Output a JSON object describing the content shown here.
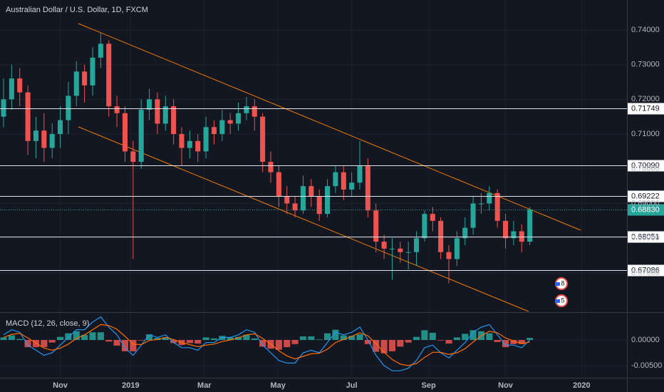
{
  "chart_data": {
    "type": "candlestick",
    "title": "Australian Dollar / U.S. Dollar, 1D, FXCM",
    "up_color": "#26a69a",
    "down_color": "#ef5350",
    "open": [
      0.715,
      0.72,
      0.726,
      0.722,
      0.708,
      0.711,
      0.706,
      0.71,
      0.714,
      0.721,
      0.728,
      0.724,
      0.732,
      0.736,
      0.718,
      0.716,
      0.705,
      0.702,
      0.717,
      0.72,
      0.713,
      0.718,
      0.71,
      0.706,
      0.708,
      0.705,
      0.712,
      0.71,
      0.714,
      0.713,
      0.716,
      0.718,
      0.715,
      0.702,
      0.699,
      0.692,
      0.69,
      0.688,
      0.695,
      0.692,
      0.687,
      0.695,
      0.699,
      0.694,
      0.696,
      0.701,
      0.688,
      0.679,
      0.677,
      0.677,
      0.676,
      0.676,
      0.68,
      0.687,
      0.685,
      0.676,
      0.674,
      0.68,
      0.683,
      0.69,
      0.69,
      0.693,
      0.685,
      0.68,
      0.682,
      0.679
    ],
    "high": [
      0.726,
      0.73,
      0.729,
      0.724,
      0.715,
      0.716,
      0.713,
      0.718,
      0.725,
      0.731,
      0.73,
      0.735,
      0.7392,
      0.737,
      0.721,
      0.718,
      0.708,
      0.72,
      0.723,
      0.722,
      0.721,
      0.72,
      0.712,
      0.711,
      0.71,
      0.715,
      0.714,
      0.717,
      0.716,
      0.719,
      0.7207,
      0.72,
      0.716,
      0.705,
      0.701,
      0.695,
      0.692,
      0.698,
      0.697,
      0.694,
      0.697,
      0.701,
      0.701,
      0.699,
      0.708,
      0.703,
      0.69,
      0.681,
      0.68,
      0.679,
      0.679,
      0.682,
      0.688,
      0.689,
      0.686,
      0.678,
      0.682,
      0.686,
      0.692,
      0.693,
      0.695,
      0.694,
      0.687,
      0.685,
      0.684,
      0.689
    ],
    "low": [
      0.712,
      0.717,
      0.718,
      0.704,
      0.703,
      0.702,
      0.703,
      0.706,
      0.71,
      0.718,
      0.719,
      0.721,
      0.729,
      0.715,
      0.712,
      0.702,
      0.674,
      0.7,
      0.714,
      0.71,
      0.711,
      0.707,
      0.701,
      0.703,
      0.702,
      0.703,
      0.707,
      0.708,
      0.71,
      0.711,
      0.714,
      0.711,
      0.699,
      0.696,
      0.689,
      0.687,
      0.686,
      0.687,
      0.689,
      0.685,
      0.686,
      0.693,
      0.691,
      0.692,
      0.694,
      0.686,
      0.676,
      0.674,
      0.668,
      0.673,
      0.671,
      0.672,
      0.679,
      0.682,
      0.674,
      0.667,
      0.672,
      0.678,
      0.681,
      0.687,
      0.688,
      0.683,
      0.677,
      0.678,
      0.676,
      0.678
    ],
    "close": [
      0.72,
      0.726,
      0.722,
      0.708,
      0.711,
      0.706,
      0.71,
      0.714,
      0.721,
      0.728,
      0.724,
      0.732,
      0.736,
      0.718,
      0.716,
      0.705,
      0.702,
      0.717,
      0.72,
      0.713,
      0.718,
      0.71,
      0.706,
      0.708,
      0.705,
      0.712,
      0.71,
      0.714,
      0.713,
      0.716,
      0.718,
      0.715,
      0.702,
      0.699,
      0.692,
      0.69,
      0.688,
      0.695,
      0.692,
      0.687,
      0.695,
      0.699,
      0.694,
      0.696,
      0.701,
      0.688,
      0.679,
      0.677,
      0.677,
      0.676,
      0.676,
      0.68,
      0.687,
      0.685,
      0.676,
      0.674,
      0.68,
      0.683,
      0.69,
      0.69,
      0.693,
      0.685,
      0.68,
      0.682,
      0.679,
      0.6883
    ],
    "xlim": [
      -0.44,
      77
    ],
    "xticks": [
      {
        "value": 7,
        "label": "Nov"
      },
      {
        "value": 15.7,
        "label": "2019"
      },
      {
        "value": 24.8,
        "label": "Mar"
      },
      {
        "value": 33.9,
        "label": "May"
      },
      {
        "value": 43,
        "label": "Jul"
      },
      {
        "value": 52.5,
        "label": "Sep"
      },
      {
        "value": 62,
        "label": "Nov"
      },
      {
        "value": 71.4,
        "label": "2020"
      }
    ],
    "ylim": [
      0.6587,
      0.7486
    ],
    "yticks": [
      {
        "value": 0.67,
        "label": "0.67000"
      },
      {
        "value": 0.68,
        "label": "0.68000"
      },
      {
        "value": 0.69,
        "label": "0.69000"
      },
      {
        "value": 0.7,
        "label": "0.70000"
      },
      {
        "value": 0.71,
        "label": "0.71000"
      },
      {
        "value": 0.72,
        "label": "0.72000"
      },
      {
        "value": 0.73,
        "label": "0.73000"
      },
      {
        "value": 0.74,
        "label": "0.74000"
      }
    ],
    "grid": true,
    "levels": [
      0.71749,
      {
        "value": 0.7009,
        "label": "0.70090"
      },
      0.69222,
      0.68051,
      0.67086
    ],
    "last_price": {
      "value": 0.6883,
      "label": "0.68830"
    },
    "events": [
      "8",
      "5"
    ],
    "macd": {
      "title": "MACD (12, 26, close, 9)",
      "macd_color": "#2196f3",
      "signal_color": "#ff6d00",
      "ylim": [
        -0.00736,
        0.00514
      ],
      "yticks": [
        {
          "value": 0,
          "label": "0.00000"
        },
        {
          "value": -0.005,
          "label": "-0.00500"
        }
      ],
      "macd": [
        0.001,
        0.002,
        0.0015,
        -0.001,
        -0.002,
        -0.003,
        -0.0025,
        -0.001,
        0.0005,
        0.002,
        0.002,
        0.0035,
        0.0045,
        0.0025,
        0.001,
        -0.0015,
        -0.003,
        -0.001,
        0.001,
        0.0005,
        0.001,
        -0.0005,
        -0.0015,
        -0.0015,
        -0.002,
        -0.0005,
        -0.0005,
        0.0005,
        0.0005,
        0.001,
        0.002,
        0.0015,
        -0.001,
        -0.0025,
        -0.004,
        -0.0045,
        -0.0045,
        -0.0025,
        -0.002,
        -0.0025,
        -0.0005,
        0.0015,
        0.001,
        0.0015,
        0.0025,
        0.0,
        -0.003,
        -0.005,
        -0.006,
        -0.006,
        -0.0055,
        -0.004,
        -0.0015,
        -0.001,
        -0.0025,
        -0.0035,
        -0.002,
        -0.0005,
        0.0015,
        0.0025,
        0.003,
        0.001,
        -0.001,
        -0.001,
        -0.0015,
        0.0
      ],
      "signal": [
        0.0005,
        0.0011,
        0.0013,
        0.0004,
        -0.0006,
        -0.0016,
        -0.002,
        -0.0016,
        -0.0008,
        0.0003,
        0.001,
        0.002,
        0.003,
        0.0028,
        0.0021,
        0.0007,
        -0.0008,
        -0.0009,
        -0.0001,
        0.0001,
        0.0005,
        0.0001,
        -0.0005,
        -0.0009,
        -0.0013,
        -0.001,
        -0.0008,
        -0.0003,
        0.0,
        0.0004,
        0.001,
        0.0012,
        0.0003,
        -0.0008,
        -0.0021,
        -0.0031,
        -0.0037,
        -0.0032,
        -0.0027,
        -0.0026,
        -0.0018,
        -0.0005,
        0.0001,
        0.0007,
        0.0014,
        0.0008,
        -0.0007,
        -0.0024,
        -0.0038,
        -0.0047,
        -0.005,
        -0.0046,
        -0.0034,
        -0.0024,
        -0.0024,
        -0.0028,
        -0.0025,
        -0.0017,
        -0.0004,
        0.0008,
        0.0017,
        0.0014,
        0.0004,
        -0.0002,
        -0.0007,
        -0.0004
      ],
      "histogram": [
        0.0005,
        0.0009,
        0.0002,
        -0.0014,
        -0.0014,
        -0.0014,
        -0.0005,
        0.0006,
        0.0013,
        0.0017,
        0.001,
        0.0015,
        0.0015,
        -0.0003,
        -0.0011,
        -0.0022,
        -0.0022,
        -0.0001,
        0.0011,
        0.0004,
        0.0005,
        -0.0006,
        -0.001,
        -0.0006,
        -0.0007,
        0.0005,
        0.0003,
        0.0008,
        0.0005,
        0.0006,
        0.001,
        0.0003,
        -0.0013,
        -0.0017,
        -0.0019,
        -0.0014,
        -0.0008,
        0.0007,
        0.0007,
        0.0001,
        0.0013,
        0.002,
        0.0009,
        0.0008,
        0.0011,
        -0.0008,
        -0.0023,
        -0.0026,
        -0.0022,
        -0.0013,
        -0.0005,
        0.0006,
        0.0019,
        0.0014,
        -0.0001,
        -0.0007,
        0.0005,
        0.0012,
        0.0019,
        0.0017,
        0.0013,
        -0.0004,
        -0.0014,
        -0.0008,
        -0.0008,
        0.0004
      ]
    }
  }
}
